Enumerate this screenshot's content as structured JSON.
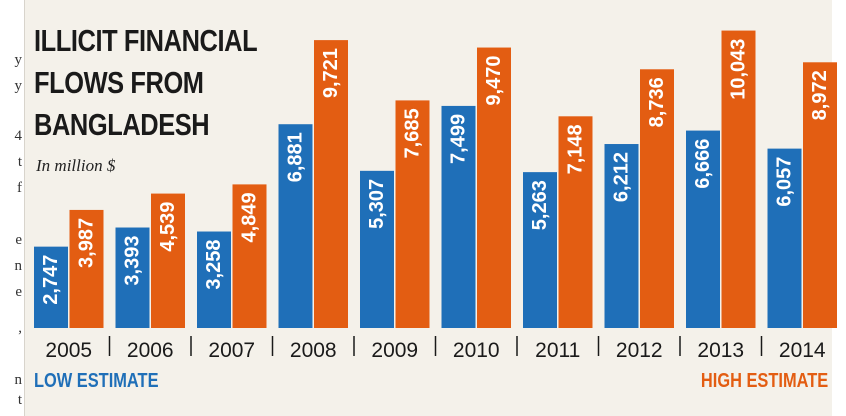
{
  "page": {
    "left_strip_chars": [
      "y",
      "y",
      "4",
      "t",
      "f",
      "e",
      "n",
      "e",
      ",",
      "n",
      "t"
    ]
  },
  "chart_data": {
    "type": "bar",
    "title": "ILLICIT FINANCIAL\nFLOWS FROM\nBANGLADESH",
    "subtitle": "In million $",
    "categories": [
      "2005",
      "2006",
      "2007",
      "2008",
      "2009",
      "2010",
      "2011",
      "2012",
      "2013",
      "2014"
    ],
    "series": [
      {
        "name": "LOW ESTIMATE",
        "color": "#1f6fb8",
        "values": [
          2747,
          3393,
          3258,
          6881,
          5307,
          7499,
          5263,
          6212,
          6666,
          6057
        ],
        "labels": [
          "2,747",
          "3,393",
          "3,258",
          "6,881",
          "5,307",
          "7,499",
          "5,263",
          "6,212",
          "6,666",
          "6,057"
        ]
      },
      {
        "name": "HIGH ESTIMATE",
        "color": "#e35d12",
        "values": [
          3987,
          4539,
          4849,
          9721,
          7685,
          9470,
          7148,
          8736,
          10043,
          8972
        ],
        "labels": [
          "3,987",
          "4,539",
          "4,849",
          "9,721",
          "7,685",
          "9,470",
          "7,148",
          "8,736",
          "10,043",
          "8,972"
        ]
      }
    ],
    "ylim": [
      0,
      10400
    ],
    "grid": false,
    "legend_placement": "bottom"
  }
}
